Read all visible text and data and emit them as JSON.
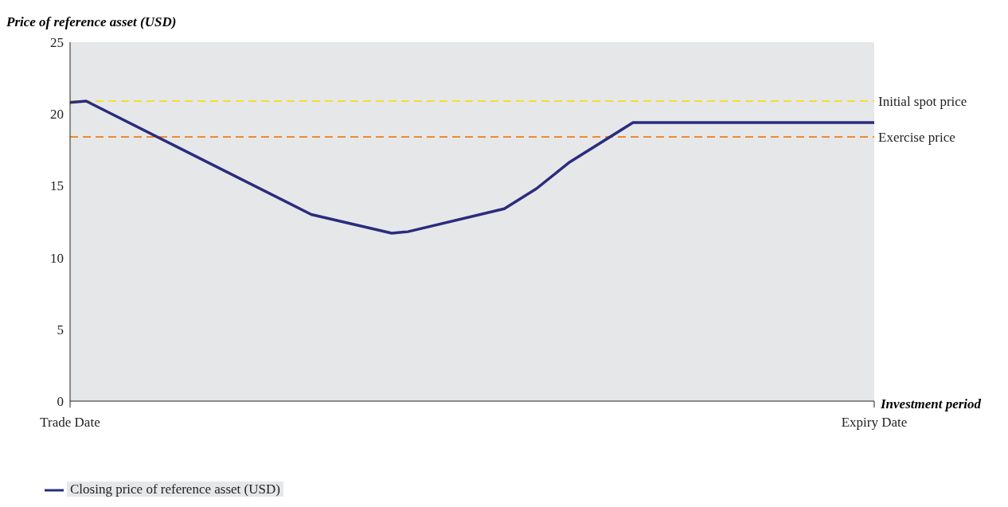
{
  "chart_data": {
    "type": "line",
    "ylabel": "Price of reference asset (USD)",
    "xlabel": "Investment period",
    "categories": [
      "Trade Date",
      null,
      null,
      null,
      null,
      null,
      null,
      null,
      null,
      null,
      null,
      null,
      null,
      null,
      null,
      null,
      null,
      null,
      null,
      null,
      null,
      null,
      null,
      null,
      null,
      null,
      null,
      null,
      null,
      null,
      null,
      null,
      null,
      null,
      null,
      null,
      null,
      null,
      null,
      null,
      null,
      null,
      null,
      null,
      null,
      null,
      null,
      null,
      null,
      null,
      "Expiry Date"
    ],
    "series": [
      {
        "name": "Closing price of reference asset (USD)",
        "color": "#2b2c7c",
        "values": [
          20.8,
          20.9,
          null,
          null,
          null,
          null,
          null,
          null,
          null,
          null,
          null,
          null,
          null,
          null,
          null,
          13.0,
          null,
          null,
          null,
          null,
          11.7,
          11.8,
          null,
          null,
          null,
          null,
          null,
          13.4,
          null,
          14.8,
          null,
          16.6,
          null,
          null,
          null,
          19.4,
          null,
          null,
          null,
          null,
          null,
          null,
          null,
          null,
          null,
          null,
          null,
          null,
          null,
          null,
          19.4
        ]
      }
    ],
    "ylim": [
      0,
      25
    ],
    "yticks": [
      0,
      5,
      10,
      15,
      20,
      25
    ],
    "ref_lines": [
      {
        "axis": "y",
        "value": 20.9,
        "label": "Initial spot price",
        "color": "#f2df2c",
        "line_style": "dashed"
      },
      {
        "axis": "y",
        "value": 18.4,
        "label": "Exercise price",
        "color": "#ee8a30",
        "line_style": "dashed"
      }
    ],
    "grid": false,
    "legend": "bottom left",
    "marker": "none",
    "line_style": "solid"
  }
}
